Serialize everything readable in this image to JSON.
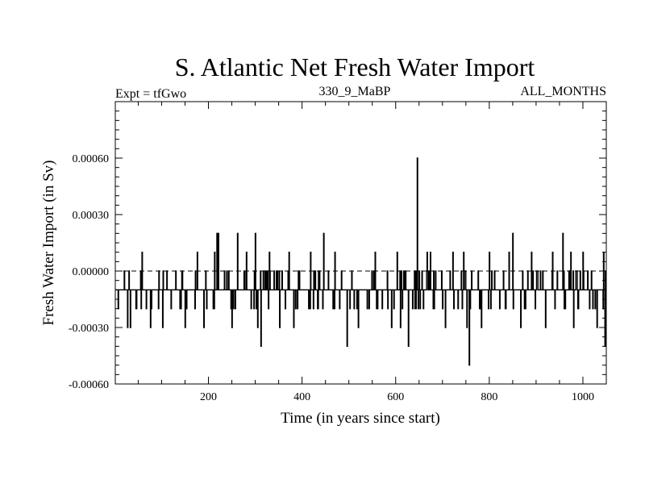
{
  "chart_data": {
    "type": "line",
    "title": "S. Atlantic Net Fresh Water Import",
    "subtitle_left": "Expt = tfGwo",
    "subtitle_center": "330_9_MaBP",
    "subtitle_right": "ALL_MONTHS",
    "xlabel": "Time (in years since start)",
    "ylabel": "Fresh Water Import (in Sv)",
    "xlim": [
      1,
      1050
    ],
    "ylim": [
      -0.0006,
      0.0009
    ],
    "x_major_ticks": [
      200,
      400,
      600,
      800,
      1000
    ],
    "x_tick_labels": [
      "200",
      "400",
      "600",
      "800",
      "1000"
    ],
    "y_major_ticks": [
      -0.0006,
      -0.0003,
      0.0,
      0.0003,
      0.0006
    ],
    "y_tick_labels": [
      "-0.00060",
      "-0.00030",
      "0.00000",
      "0.00030",
      "0.00060"
    ],
    "baseline": 0.0,
    "baseline_style": "dashed",
    "grid": false,
    "series": [
      {
        "name": "Net Fresh Water Import",
        "color": "#000000",
        "x_start": 1,
        "x_step": 1,
        "count": 1050,
        "base_value": -0.0001,
        "alt_values": [
          0.0,
          -0.0002
        ],
        "alt_probability": 0.18,
        "extremes": [
          {
            "x": 27,
            "y": -0.0003
          },
          {
            "x": 33,
            "y": -0.0003
          },
          {
            "x": 58,
            "y": 0.0001
          },
          {
            "x": 76,
            "y": -0.0003
          },
          {
            "x": 102,
            "y": -0.0003
          },
          {
            "x": 150,
            "y": -0.0003
          },
          {
            "x": 176,
            "y": 0.0001
          },
          {
            "x": 190,
            "y": -0.0003
          },
          {
            "x": 213,
            "y": 0.0001
          },
          {
            "x": 218,
            "y": 0.0002
          },
          {
            "x": 221,
            "y": 0.0002
          },
          {
            "x": 250,
            "y": -0.0003
          },
          {
            "x": 262,
            "y": 0.0002
          },
          {
            "x": 281,
            "y": 0.0001
          },
          {
            "x": 300,
            "y": 0.0002
          },
          {
            "x": 305,
            "y": -0.0003
          },
          {
            "x": 312,
            "y": -0.0004
          },
          {
            "x": 330,
            "y": 0.0001
          },
          {
            "x": 352,
            "y": -0.0003
          },
          {
            "x": 372,
            "y": 0.0001
          },
          {
            "x": 382,
            "y": -0.0003
          },
          {
            "x": 418,
            "y": 0.0001
          },
          {
            "x": 446,
            "y": 0.0002
          },
          {
            "x": 470,
            "y": 0.0001
          },
          {
            "x": 496,
            "y": -0.0004
          },
          {
            "x": 520,
            "y": -0.0003
          },
          {
            "x": 556,
            "y": 0.0001
          },
          {
            "x": 591,
            "y": -0.0003
          },
          {
            "x": 603,
            "y": 0.0001
          },
          {
            "x": 610,
            "y": -0.0003
          },
          {
            "x": 627,
            "y": -0.0004
          },
          {
            "x": 646,
            "y": 0.0006
          },
          {
            "x": 667,
            "y": 0.0001
          },
          {
            "x": 674,
            "y": 0.0001
          },
          {
            "x": 706,
            "y": -0.0003
          },
          {
            "x": 722,
            "y": 0.0001
          },
          {
            "x": 745,
            "y": 0.0001
          },
          {
            "x": 752,
            "y": -0.0003
          },
          {
            "x": 757,
            "y": -0.0005
          },
          {
            "x": 783,
            "y": -0.0003
          },
          {
            "x": 800,
            "y": 0.0001
          },
          {
            "x": 842,
            "y": 0.0001
          },
          {
            "x": 850,
            "y": 0.0002
          },
          {
            "x": 867,
            "y": -0.0003
          },
          {
            "x": 890,
            "y": 0.0001
          },
          {
            "x": 920,
            "y": -0.0003
          },
          {
            "x": 935,
            "y": 0.0001
          },
          {
            "x": 957,
            "y": 0.0002
          },
          {
            "x": 974,
            "y": 0.0001
          },
          {
            "x": 980,
            "y": -0.0003
          },
          {
            "x": 1000,
            "y": 0.0001
          },
          {
            "x": 1030,
            "y": -0.0003
          },
          {
            "x": 1044,
            "y": 0.0001
          },
          {
            "x": 1047,
            "y": -0.0004
          }
        ]
      }
    ]
  }
}
